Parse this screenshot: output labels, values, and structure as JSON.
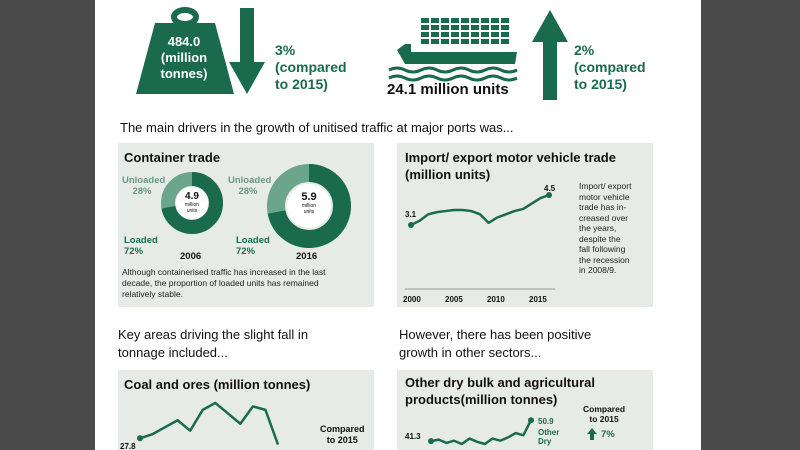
{
  "stats": {
    "tonnage_value": "484.0",
    "tonnage_unit_line1": "(million",
    "tonnage_unit_line2": "tonnes)",
    "tonnage_change_pct": "3%",
    "tonnage_change_line2": "(compared",
    "tonnage_change_line3": "to 2015)",
    "units_value": "24.1 million units",
    "units_change_pct": "2%",
    "units_change_line2": "(compared",
    "units_change_line3": "to 2015)"
  },
  "intro_text": "The main drivers in the growth of unitised traffic at major ports was...",
  "container_panel": {
    "title": "Container trade",
    "donut_2006": {
      "year": "2006",
      "center_value": "4.9",
      "center_line2": "million",
      "center_line3": "units",
      "unloaded_label": "Unloaded",
      "unloaded_pct": "28%",
      "loaded_label": "Loaded",
      "loaded_pct": "72%",
      "loaded_share": 0.72
    },
    "donut_2016": {
      "year": "2016",
      "center_value": "5.9",
      "center_line2": "million",
      "center_line3": "units",
      "unloaded_label": "Unloaded",
      "unloaded_pct": "28%",
      "loaded_label": "Loaded",
      "loaded_pct": "72%",
      "loaded_share": 0.72
    },
    "note_line1": "Although containerised traffic has increased in the last",
    "note_line2": "decade, the proportion of loaded units has remained",
    "note_line3": "relatively stable."
  },
  "vehicle_panel": {
    "title_line1": "Import/ export motor vehicle trade",
    "title_line2": "(million units)",
    "start_value": "3.1",
    "end_value": "4.5",
    "x_ticks": [
      "2000",
      "2005",
      "2010",
      "2015"
    ],
    "note_line1": "Import/ export",
    "note_line2": "motor vehicle",
    "note_line3": "trade has in-",
    "note_line4": "creased over",
    "note_line5": "the years,",
    "note_line6": "despite the",
    "note_line7": "fall following",
    "note_line8": "the recession",
    "note_line9": "in 2008/9."
  },
  "fall_heading_line1": "Key areas driving the slight fall in",
  "fall_heading_line2": "tonnage included...",
  "growth_heading_line1": "However, there has been positive",
  "growth_heading_line2": "growth in other sectors...",
  "coal_panel": {
    "title": "Coal and ores (million tonnes)",
    "start_value": "27.8",
    "compared_line1": "Compared",
    "compared_line2": "to 2015"
  },
  "bulk_panel": {
    "title_line1": "Other dry bulk and agricultural",
    "title_line2": "products(million tonnes)",
    "start_value": "41.3",
    "end_value": "50.9",
    "end_label_line1": "Other",
    "end_label_line2": "Dry",
    "compared_line1": "Compared",
    "compared_line2": "to 2015",
    "change_pct": "7%"
  },
  "chart_data": [
    {
      "type": "line",
      "title": "Import/ export motor vehicle trade (million units)",
      "x": [
        2000,
        2001,
        2002,
        2003,
        2004,
        2005,
        2006,
        2007,
        2008,
        2009,
        2010,
        2011,
        2012,
        2013,
        2014,
        2015,
        2016
      ],
      "series": [
        {
          "values": [
            3.1,
            3.3,
            3.6,
            3.7,
            3.75,
            3.8,
            3.8,
            3.75,
            3.6,
            3.2,
            3.45,
            3.6,
            3.75,
            3.85,
            4.1,
            4.35,
            4.5
          ]
        }
      ]
    },
    {
      "type": "line",
      "title": "Coal and ores (million tonnes)",
      "series": [
        {
          "values": [
            27.8,
            29,
            31,
            33,
            30,
            36,
            38,
            35,
            32,
            37,
            36,
            26
          ]
        }
      ]
    },
    {
      "type": "line",
      "title": "Other dry bulk and agricultural products(million tonnes)",
      "series": [
        {
          "values": [
            41.3,
            42,
            40.5,
            41.5,
            40,
            42.5,
            41,
            40,
            42.5,
            41.5,
            43,
            45,
            44,
            50.9
          ]
        }
      ]
    }
  ],
  "colors": {
    "brand_green": "#1a6b4d",
    "light_green": "#6aa58c",
    "panel_bg": "#e6ebe8"
  }
}
